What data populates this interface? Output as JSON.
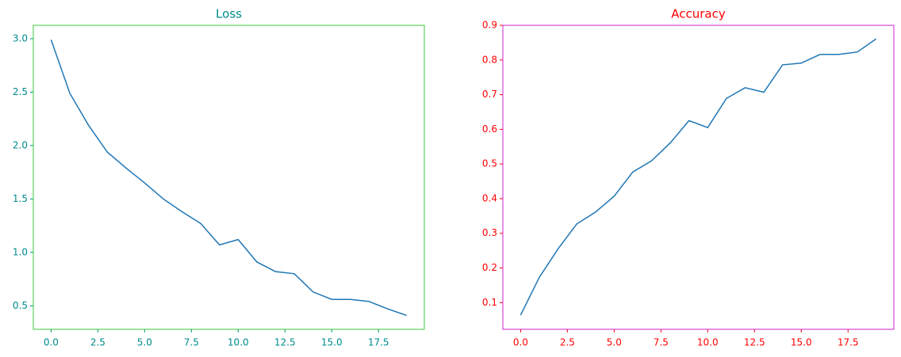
{
  "chart_data": [
    {
      "type": "line",
      "title": "Loss",
      "frame_color": "#3cc83c",
      "text_color": "#008b8b",
      "x": [
        0,
        1,
        2,
        3,
        4,
        5,
        6,
        7,
        8,
        9,
        10,
        11,
        12,
        13,
        14,
        15,
        16,
        17,
        18,
        19
      ],
      "series": [
        {
          "color": "#1f77b4",
          "values": [
            2.99,
            2.49,
            2.19,
            1.94,
            1.79,
            1.65,
            1.5,
            1.38,
            1.27,
            1.07,
            1.12,
            0.91,
            0.82,
            0.8,
            0.63,
            0.56,
            0.56,
            0.54,
            0.47,
            0.41
          ]
        }
      ],
      "xlim": [
        -0.95,
        19.95
      ],
      "xticks": [
        {
          "value": 0,
          "label": "0.0"
        },
        2.5,
        {
          "value": 5,
          "label": "5.0"
        },
        7.5,
        {
          "value": 10,
          "label": "10.0"
        },
        12.5,
        {
          "value": 15,
          "label": "15.0"
        },
        17.5
      ],
      "ylim": [
        0.28,
        3.125
      ],
      "yticks": [
        0.5,
        {
          "value": 1,
          "label": "1.0"
        },
        1.5,
        {
          "value": 2,
          "label": "2.0"
        },
        2.5,
        {
          "value": 3,
          "label": "3.0"
        }
      ],
      "grid": false
    },
    {
      "type": "line",
      "title": "Accuracy",
      "frame_color": "#d020d0",
      "text_color": "#ff0000",
      "x": [
        0,
        1,
        2,
        3,
        4,
        5,
        6,
        7,
        8,
        9,
        10,
        11,
        12,
        13,
        14,
        15,
        16,
        17,
        18,
        19
      ],
      "series": [
        {
          "color": "#1f77b4",
          "values": [
            0.064,
            0.173,
            0.255,
            0.327,
            0.361,
            0.407,
            0.477,
            0.509,
            0.561,
            0.625,
            0.605,
            0.689,
            0.72,
            0.707,
            0.786,
            0.791,
            0.816,
            0.816,
            0.823,
            0.861
          ]
        }
      ],
      "xlim": [
        -0.95,
        19.95
      ],
      "xticks": [
        {
          "value": 0,
          "label": "0.0"
        },
        2.5,
        {
          "value": 5,
          "label": "5.0"
        },
        7.5,
        {
          "value": 10,
          "label": "10.0"
        },
        12.5,
        {
          "value": 15,
          "label": "15.0"
        },
        17.5
      ],
      "ylim": [
        0.023,
        0.9
      ],
      "yticks": [
        0.1,
        0.2,
        0.3,
        0.4,
        0.5,
        0.6,
        0.7,
        0.8,
        0.9
      ],
      "grid": false
    }
  ]
}
